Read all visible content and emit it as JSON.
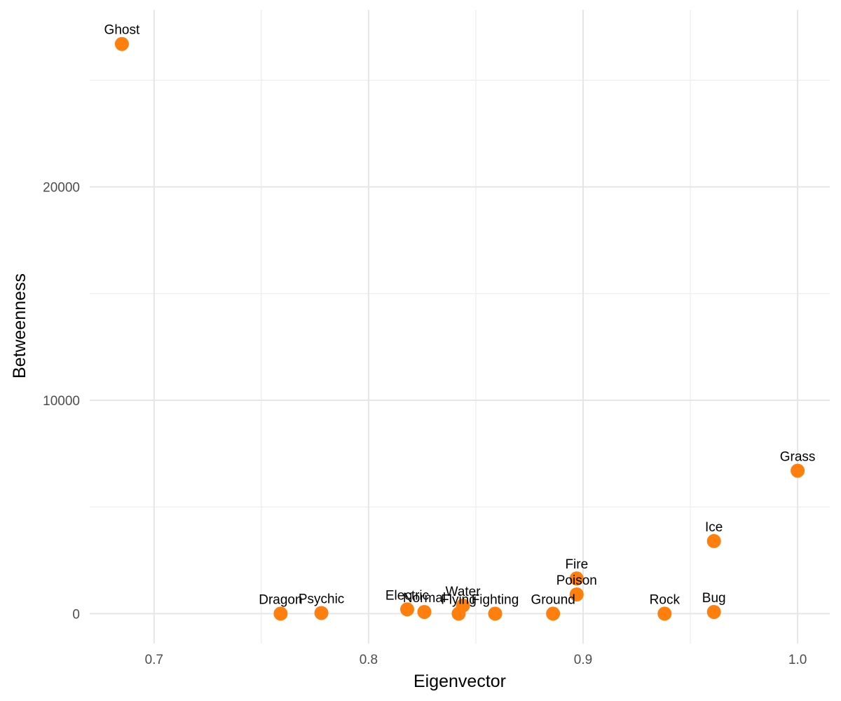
{
  "chart_data": {
    "type": "scatter",
    "title": "",
    "xlabel": "Eigenvector",
    "ylabel": "Betweenness",
    "xlim": [
      0.67,
      1.015
    ],
    "ylim": [
      -1400,
      28300
    ],
    "x_ticks": [
      0.7,
      0.8,
      0.9,
      1.0
    ],
    "x_tick_labels": [
      "0.7",
      "0.8",
      "0.9",
      "1.0"
    ],
    "y_ticks": [
      0,
      10000,
      20000
    ],
    "y_tick_labels": [
      "0",
      "10000",
      "20000"
    ],
    "grid": true,
    "legend": "none",
    "point_color": "#ff7f0e",
    "points": [
      {
        "label": "Ghost",
        "x": 0.685,
        "y": 26700
      },
      {
        "label": "Dragon",
        "x": 0.759,
        "y": 0
      },
      {
        "label": "Psychic",
        "x": 0.778,
        "y": 30
      },
      {
        "label": "Electric",
        "x": 0.818,
        "y": 200
      },
      {
        "label": "Normal",
        "x": 0.826,
        "y": 80
      },
      {
        "label": "Flying",
        "x": 0.842,
        "y": 0
      },
      {
        "label": "Water",
        "x": 0.844,
        "y": 380
      },
      {
        "label": "Fighting",
        "x": 0.859,
        "y": 0
      },
      {
        "label": "Ground",
        "x": 0.886,
        "y": 0
      },
      {
        "label": "Fire",
        "x": 0.897,
        "y": 1650
      },
      {
        "label": "Poison",
        "x": 0.897,
        "y": 900
      },
      {
        "label": "Rock",
        "x": 0.938,
        "y": 0
      },
      {
        "label": "Bug",
        "x": 0.961,
        "y": 80
      },
      {
        "label": "Ice",
        "x": 0.961,
        "y": 3400
      },
      {
        "label": "Grass",
        "x": 1.0,
        "y": 6700
      }
    ]
  }
}
